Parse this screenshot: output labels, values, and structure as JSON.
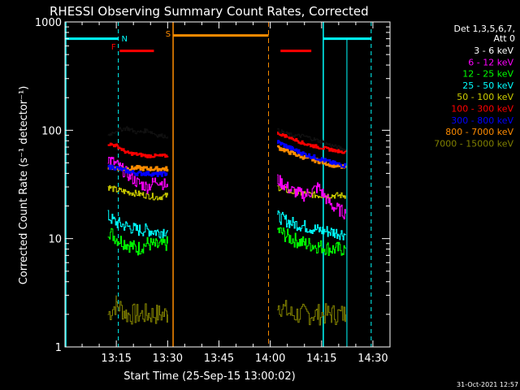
{
  "chart_data": {
    "type": "line",
    "title": "RHESSI Observing Summary Count Rates, Corrected",
    "xlabel": "Start Time (25-Sep-15 13:00:02)",
    "ylabel": "Corrected Count Rate (s⁻¹ detector⁻¹)",
    "yscale": "log",
    "ylim": [
      1,
      1000
    ],
    "xlim_minutes": [
      0,
      95
    ],
    "x_ticks": [
      {
        "min": 15,
        "label": "13:15"
      },
      {
        "min": 30,
        "label": "13:30"
      },
      {
        "min": 45,
        "label": "13:45"
      },
      {
        "min": 60,
        "label": "14:00"
      },
      {
        "min": 75,
        "label": "14:15"
      },
      {
        "min": 90,
        "label": "14:30"
      }
    ],
    "y_ticks": [
      {
        "value": 1,
        "label": "1"
      },
      {
        "value": 10,
        "label": "10"
      },
      {
        "value": 100,
        "label": "100"
      },
      {
        "value": 1000,
        "label": "1000"
      }
    ],
    "legend_title": "Det 1,3,5,6,7,",
    "legend_subtitle": "Att 0",
    "series": [
      {
        "name": "3 - 6 keV",
        "color": "#000000",
        "seg1": [
          [
            12.5,
            90
          ],
          [
            15,
            100
          ],
          [
            18,
            105
          ],
          [
            21,
            95
          ],
          [
            24,
            100
          ],
          [
            27,
            90
          ],
          [
            30,
            88
          ]
        ],
        "seg2": [
          [
            62,
            100
          ],
          [
            66,
            90
          ],
          [
            70,
            88
          ],
          [
            74,
            80
          ],
          [
            78,
            72
          ],
          [
            82,
            66
          ]
        ]
      },
      {
        "name": "6 - 12 keV",
        "color": "#ff00ff",
        "seg1": [
          [
            12.5,
            55
          ],
          [
            15,
            48
          ],
          [
            18,
            40
          ],
          [
            21,
            33
          ],
          [
            24,
            30
          ],
          [
            27,
            35
          ],
          [
            30,
            30
          ]
        ],
        "seg2": [
          [
            62,
            35
          ],
          [
            66,
            28
          ],
          [
            70,
            25
          ],
          [
            74,
            30
          ],
          [
            76,
            24
          ],
          [
            78,
            20
          ],
          [
            82,
            17
          ]
        ]
      },
      {
        "name": "12 - 25 keV",
        "color": "#00ff00",
        "seg1": [
          [
            12.5,
            12
          ],
          [
            15,
            10
          ],
          [
            18,
            9
          ],
          [
            21,
            8
          ],
          [
            24,
            9
          ],
          [
            27,
            8.5
          ],
          [
            30,
            9
          ]
        ],
        "seg2": [
          [
            62,
            12
          ],
          [
            66,
            10
          ],
          [
            70,
            9
          ],
          [
            74,
            8.5
          ],
          [
            78,
            8
          ],
          [
            82,
            8
          ]
        ]
      },
      {
        "name": "25 - 50 keV",
        "color": "#00ffff",
        "seg1": [
          [
            12.5,
            16
          ],
          [
            15,
            14
          ],
          [
            18,
            13
          ],
          [
            21,
            12
          ],
          [
            24,
            12
          ],
          [
            27,
            11.5
          ],
          [
            30,
            12
          ]
        ],
        "seg2": [
          [
            62,
            16
          ],
          [
            66,
            14
          ],
          [
            70,
            13
          ],
          [
            74,
            12
          ],
          [
            78,
            11.5
          ],
          [
            82,
            11
          ]
        ]
      },
      {
        "name": "50 - 100 keV",
        "color": "#cccc00",
        "seg1": [
          [
            12.5,
            30
          ],
          [
            15,
            28
          ],
          [
            18,
            27
          ],
          [
            21,
            26
          ],
          [
            24,
            25
          ],
          [
            27,
            24
          ],
          [
            30,
            25
          ]
        ],
        "seg2": [
          [
            62,
            30
          ],
          [
            66,
            27
          ],
          [
            70,
            26
          ],
          [
            74,
            25
          ],
          [
            78,
            25
          ],
          [
            82,
            25
          ]
        ]
      },
      {
        "name": "100 - 300 keV",
        "color": "#ff0000",
        "seg1": [
          [
            12.5,
            75
          ],
          [
            15,
            72
          ],
          [
            18,
            62
          ],
          [
            21,
            60
          ],
          [
            24,
            58
          ],
          [
            27,
            58
          ],
          [
            30,
            58
          ]
        ],
        "seg2": [
          [
            62,
            95
          ],
          [
            66,
            85
          ],
          [
            70,
            75
          ],
          [
            74,
            70
          ],
          [
            78,
            66
          ],
          [
            82,
            63
          ]
        ]
      },
      {
        "name": "300 - 800 keV",
        "color": "#0000ff",
        "seg1": [
          [
            12.5,
            46
          ],
          [
            15,
            45
          ],
          [
            18,
            42
          ],
          [
            21,
            40
          ],
          [
            24,
            40
          ],
          [
            27,
            39
          ],
          [
            30,
            40
          ]
        ],
        "seg2": [
          [
            62,
            78
          ],
          [
            66,
            68
          ],
          [
            70,
            60
          ],
          [
            74,
            55
          ],
          [
            78,
            50
          ],
          [
            82,
            47
          ]
        ]
      },
      {
        "name": "800 - 7000 keV",
        "color": "#ff8c00",
        "seg1": [
          [
            12.5,
            46
          ],
          [
            15,
            45
          ],
          [
            18,
            44
          ],
          [
            21,
            45
          ],
          [
            24,
            44
          ],
          [
            27,
            44
          ],
          [
            30,
            44
          ]
        ],
        "seg2": [
          [
            62,
            70
          ],
          [
            66,
            62
          ],
          [
            70,
            56
          ],
          [
            74,
            52
          ],
          [
            78,
            48
          ],
          [
            82,
            45
          ]
        ]
      },
      {
        "name": "7000 - 15000 keV",
        "color": "#808000",
        "seg1": [
          [
            12.5,
            2
          ],
          [
            15,
            2.5
          ],
          [
            18,
            2
          ],
          [
            21,
            2
          ],
          [
            24,
            2
          ],
          [
            27,
            2
          ],
          [
            30,
            2
          ]
        ],
        "seg2": [
          [
            62,
            2.5
          ],
          [
            66,
            2
          ],
          [
            70,
            2
          ],
          [
            74,
            2
          ],
          [
            78,
            2
          ],
          [
            82,
            2
          ]
        ]
      }
    ],
    "annotations": [
      {
        "label": "N",
        "color": "#00ffff"
      },
      {
        "label": "F",
        "color": "#ff0000"
      },
      {
        "label": "S",
        "color": "#ff8c00"
      }
    ],
    "timestamp": "31-Oct-2021 12:57"
  }
}
